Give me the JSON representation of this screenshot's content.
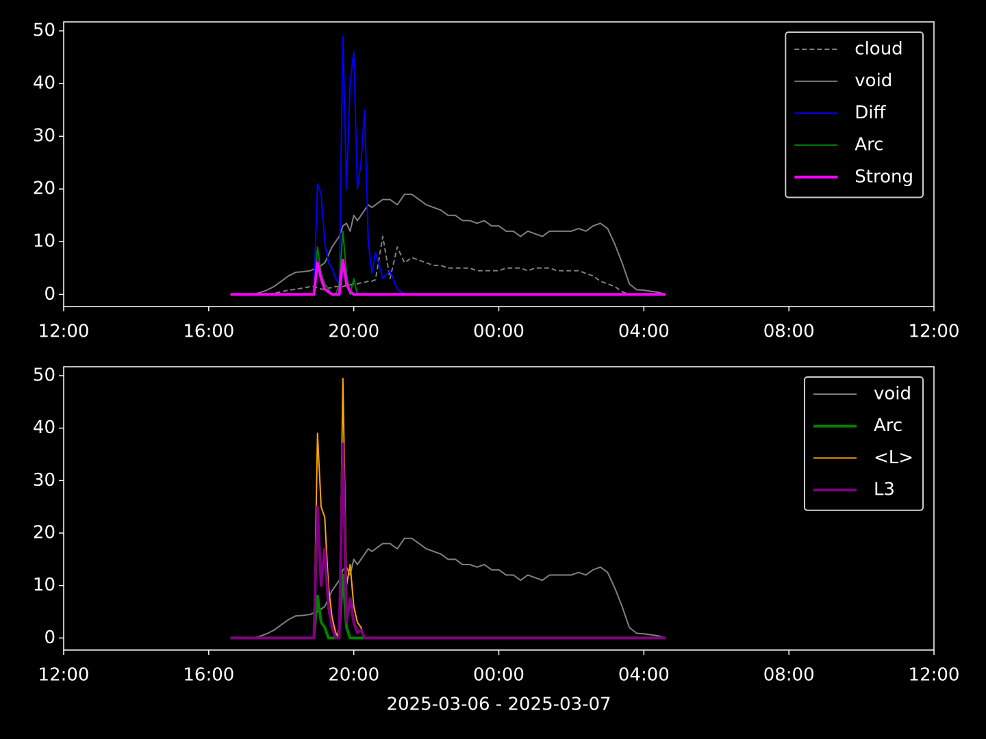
{
  "chart_data": [
    {
      "type": "line",
      "xlim": [
        0,
        24
      ],
      "ylim": [
        -2.3,
        51.7
      ],
      "xticks": [
        {
          "value": 0,
          "label": "12:00"
        },
        {
          "value": 4,
          "label": "16:00"
        },
        {
          "value": 8,
          "label": "20:00"
        },
        {
          "value": 12,
          "label": "00:00"
        },
        {
          "value": 16,
          "label": "04:00"
        },
        {
          "value": 20,
          "label": "08:00"
        },
        {
          "value": 24,
          "label": "12:00"
        }
      ],
      "yticks": [
        0,
        10,
        20,
        30,
        40,
        50
      ],
      "legend": "upper right",
      "x": [
        4.6,
        4.8,
        5.0,
        5.2,
        5.4,
        5.6,
        5.8,
        6.0,
        6.2,
        6.4,
        6.6,
        6.8,
        6.9,
        7.0,
        7.1,
        7.2,
        7.3,
        7.4,
        7.5,
        7.6,
        7.7,
        7.8,
        7.9,
        8.0,
        8.1,
        8.2,
        8.3,
        8.4,
        8.5,
        8.6,
        8.8,
        9.0,
        9.2,
        9.4,
        9.6,
        9.8,
        10.0,
        10.2,
        10.4,
        10.6,
        10.8,
        11.0,
        11.2,
        11.4,
        11.6,
        11.8,
        12.0,
        12.2,
        12.4,
        12.6,
        12.8,
        13.0,
        13.2,
        13.4,
        13.6,
        13.8,
        14.0,
        14.2,
        14.4,
        14.6,
        14.8,
        15.0,
        15.2,
        15.4,
        15.6,
        15.8,
        16.0,
        16.2,
        16.4,
        16.6
      ],
      "series": [
        {
          "name": "cloud",
          "color": "#808080",
          "dashed": true,
          "line_width": 2,
          "values": [
            0,
            0,
            0,
            0,
            0,
            0,
            0.2,
            0.5,
            0.8,
            1,
            1.2,
            1.5,
            1.5,
            1.3,
            1,
            1,
            1.2,
            1.3,
            1.5,
            1.5,
            1.5,
            1.7,
            1.8,
            2,
            2,
            2.2,
            2.3,
            2.5,
            2.5,
            2.8,
            11,
            3,
            9,
            6,
            7,
            6.5,
            6,
            5.5,
            5.5,
            5,
            5,
            5,
            5,
            4.5,
            4.5,
            4.5,
            4.5,
            5,
            5,
            5,
            4.5,
            5,
            5,
            5,
            4.5,
            4.5,
            4.5,
            4.5,
            4,
            3.5,
            2.5,
            2,
            1.5,
            0.5,
            0,
            0,
            0,
            0,
            0,
            0
          ]
        },
        {
          "name": "void",
          "color": "#808080",
          "line_width": 2,
          "values": [
            0,
            0,
            0,
            0,
            0.3,
            0.8,
            1.5,
            2.5,
            3.5,
            4.2,
            4.3,
            4.5,
            4.8,
            5,
            5.5,
            6,
            7.5,
            9,
            10,
            11,
            13,
            13.5,
            12,
            15,
            14,
            15,
            16,
            17,
            16.5,
            17,
            18,
            18,
            17,
            19,
            19,
            18,
            17,
            16.5,
            16,
            15,
            15,
            14,
            14,
            13.5,
            14,
            13,
            13,
            12,
            12,
            11,
            12,
            11.5,
            11,
            12,
            12,
            12,
            12,
            12.5,
            12,
            13,
            13.5,
            12.5,
            9.5,
            6,
            2,
            0.9,
            0.8,
            0.6,
            0.4,
            0
          ]
        },
        {
          "name": "Diff",
          "color": "#0000ff",
          "line_width": 2,
          "values": [
            0,
            0,
            0,
            0,
            0,
            0,
            0,
            0,
            0,
            0,
            0,
            0,
            0,
            21,
            19,
            10,
            6,
            5,
            3,
            2,
            49,
            20,
            40,
            46,
            20,
            25,
            35,
            10,
            4,
            8,
            3,
            4.5,
            1,
            0,
            0,
            0,
            0,
            0,
            0,
            0,
            0,
            0,
            0,
            0,
            0,
            0,
            0,
            0,
            0,
            0,
            0,
            0,
            0,
            0,
            0,
            0,
            0,
            0,
            0,
            0,
            0,
            0,
            0,
            0,
            0,
            0,
            0,
            0,
            0,
            0
          ]
        },
        {
          "name": "Arc",
          "color": "#008000",
          "line_width": 2,
          "values": [
            0,
            0,
            0,
            0,
            0,
            0,
            0,
            0,
            0,
            0,
            0,
            0,
            0,
            9,
            4,
            2,
            1,
            0,
            0,
            2,
            12,
            4,
            0,
            3,
            0,
            0,
            0,
            0,
            0,
            0,
            0,
            0,
            0,
            0,
            0,
            0,
            0,
            0,
            0,
            0,
            0,
            0,
            0,
            0,
            0,
            0,
            0,
            0,
            0,
            0,
            0,
            0,
            0,
            0,
            0,
            0,
            0,
            0,
            0,
            0,
            0,
            0,
            0,
            0,
            0,
            0,
            0,
            0,
            0,
            0
          ]
        },
        {
          "name": "Strong",
          "color": "#ff00ff",
          "line_width": 4,
          "values": [
            0,
            0,
            0,
            0,
            0,
            0,
            0,
            0,
            0,
            0,
            0,
            0,
            0,
            6,
            3,
            1,
            0.5,
            0,
            0,
            0,
            6.5,
            2,
            0.5,
            0,
            0,
            0,
            0,
            0,
            0,
            0,
            0,
            0,
            0,
            0,
            0,
            0,
            0,
            0,
            0,
            0,
            0,
            0,
            0,
            0,
            0,
            0,
            0,
            0,
            0,
            0,
            0,
            0,
            0,
            0,
            0,
            0,
            0,
            0,
            0,
            0,
            0,
            0,
            0,
            0,
            0,
            0,
            0,
            0,
            0,
            0
          ]
        }
      ]
    },
    {
      "type": "line",
      "xlim": [
        0,
        24
      ],
      "ylim": [
        -2.3,
        51.7
      ],
      "xlabel": "2025-03-06 - 2025-03-07",
      "xticks": [
        {
          "value": 0,
          "label": "12:00"
        },
        {
          "value": 4,
          "label": "16:00"
        },
        {
          "value": 8,
          "label": "20:00"
        },
        {
          "value": 12,
          "label": "00:00"
        },
        {
          "value": 16,
          "label": "04:00"
        },
        {
          "value": 20,
          "label": "08:00"
        },
        {
          "value": 24,
          "label": "12:00"
        }
      ],
      "yticks": [
        0,
        10,
        20,
        30,
        40,
        50
      ],
      "legend": "upper right",
      "x": [
        4.6,
        4.8,
        5.0,
        5.2,
        5.4,
        5.6,
        5.8,
        6.0,
        6.2,
        6.4,
        6.6,
        6.8,
        6.9,
        7.0,
        7.1,
        7.2,
        7.3,
        7.4,
        7.5,
        7.6,
        7.7,
        7.8,
        7.9,
        8.0,
        8.1,
        8.2,
        8.3,
        8.4,
        8.5,
        8.6,
        8.8,
        9.0,
        9.2,
        9.4,
        9.6,
        9.8,
        10.0,
        10.2,
        10.4,
        10.6,
        10.8,
        11.0,
        11.2,
        11.4,
        11.6,
        11.8,
        12.0,
        12.2,
        12.4,
        12.6,
        12.8,
        13.0,
        13.2,
        13.4,
        13.6,
        13.8,
        14.0,
        14.2,
        14.4,
        14.6,
        14.8,
        15.0,
        15.2,
        15.4,
        15.6,
        15.8,
        16.0,
        16.2,
        16.4,
        16.6
      ],
      "series": [
        {
          "name": "void",
          "color": "#808080",
          "line_width": 2,
          "values": [
            0,
            0,
            0,
            0,
            0.3,
            0.8,
            1.5,
            2.5,
            3.5,
            4.2,
            4.3,
            4.5,
            4.8,
            5,
            5.5,
            6,
            7.5,
            9,
            10,
            11,
            13,
            13.5,
            12,
            15,
            14,
            15,
            16,
            17,
            16.5,
            17,
            18,
            18,
            17,
            19,
            19,
            18,
            17,
            16.5,
            16,
            15,
            15,
            14,
            14,
            13.5,
            14,
            13,
            13,
            12,
            12,
            11,
            12,
            11.5,
            11,
            12,
            12,
            12,
            12,
            12.5,
            12,
            13,
            13.5,
            12.5,
            9.5,
            6,
            2,
            0.9,
            0.8,
            0.6,
            0.4,
            0
          ]
        },
        {
          "name": "Arc",
          "color": "#008000",
          "line_width": 4,
          "values": [
            0,
            0,
            0,
            0,
            0,
            0,
            0,
            0,
            0,
            0,
            0,
            0,
            0,
            8,
            3,
            2,
            0,
            0,
            0,
            1.5,
            12,
            2,
            0,
            0,
            0,
            0,
            0,
            0,
            0,
            0,
            0,
            0,
            0,
            0,
            0,
            0,
            0,
            0,
            0,
            0,
            0,
            0,
            0,
            0,
            0,
            0,
            0,
            0,
            0,
            0,
            0,
            0,
            0,
            0,
            0,
            0,
            0,
            0,
            0,
            0,
            0,
            0,
            0,
            0,
            0,
            0,
            0,
            0,
            0,
            0
          ]
        },
        {
          "name": "<L>",
          "color": "#ffa500",
          "line_width": 2,
          "values": [
            0,
            0,
            0,
            0,
            0,
            0,
            0,
            0,
            0,
            0,
            0,
            0,
            0,
            39,
            25,
            23,
            10,
            4,
            1,
            0,
            49.5,
            10,
            14,
            6,
            3,
            2,
            0,
            0,
            0,
            0,
            0,
            0,
            0,
            0,
            0,
            0,
            0,
            0,
            0,
            0,
            0,
            0,
            0,
            0,
            0,
            0,
            0,
            0,
            0,
            0,
            0,
            0,
            0,
            0,
            0,
            0,
            0,
            0,
            0,
            0,
            0,
            0,
            0,
            0,
            0,
            0,
            0,
            0,
            0,
            0
          ]
        },
        {
          "name": "L3",
          "color": "#800080",
          "line_width": 4,
          "values": [
            0,
            0,
            0,
            0,
            0,
            0,
            0,
            0,
            0,
            0,
            0,
            0,
            0,
            25,
            10,
            17,
            6,
            2,
            0,
            0,
            37,
            3,
            7.5,
            3,
            1,
            1.5,
            0,
            0,
            0,
            0,
            0,
            0,
            0,
            0,
            0,
            0,
            0,
            0,
            0,
            0,
            0,
            0,
            0,
            0,
            0,
            0,
            0,
            0,
            0,
            0,
            0,
            0,
            0,
            0,
            0,
            0,
            0,
            0,
            0,
            0,
            0,
            0,
            0,
            0,
            0,
            0,
            0,
            0,
            0,
            0
          ]
        }
      ]
    }
  ]
}
